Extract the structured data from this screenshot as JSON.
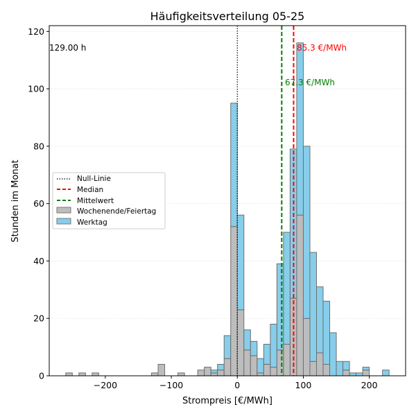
{
  "chart_data": {
    "type": "bar",
    "title": "Häufigkeitsverteilung 05-25",
    "xlabel": "Strompreis [€/MWh]",
    "ylabel": "Stunden im Monat",
    "xlim": [
      -285,
      255
    ],
    "ylim": [
      0,
      122
    ],
    "x_ticks": [
      -200,
      -100,
      0,
      100,
      200
    ],
    "y_ticks": [
      0,
      20,
      40,
      60,
      80,
      100,
      120
    ],
    "grid": "horizontal-dotted",
    "legend_position": "center-left",
    "bin_width": 10,
    "stacked": true,
    "bin_centers": [
      -255,
      -235,
      -215,
      -125,
      -115,
      -85,
      -55,
      -45,
      -35,
      -25,
      -15,
      -5,
      5,
      15,
      25,
      35,
      45,
      55,
      65,
      75,
      85,
      95,
      105,
      115,
      125,
      135,
      145,
      155,
      165,
      175,
      185,
      195,
      225
    ],
    "series": [
      {
        "name": "Wochenende/Feiertag",
        "color": "#bdbdbd",
        "values": [
          1,
          1,
          1,
          1,
          4,
          1,
          2,
          3,
          1,
          2,
          6,
          52,
          23,
          9,
          7,
          1,
          4,
          3,
          9,
          11,
          27,
          56,
          20,
          5,
          8,
          4,
          0,
          0,
          2,
          0,
          0,
          2,
          0
        ]
      },
      {
        "name": "Werktag",
        "color": "#87ceeb",
        "values": [
          0,
          0,
          0,
          0,
          0,
          0,
          0,
          0,
          1,
          2,
          8,
          43,
          33,
          7,
          5,
          5,
          7,
          15,
          30,
          39,
          52,
          60,
          60,
          38,
          23,
          22,
          15,
          5,
          3,
          1,
          1,
          1,
          2
        ]
      }
    ],
    "reference_lines": [
      {
        "name": "Null-Linie",
        "x": 0,
        "color": "#000000",
        "style": "dotted"
      },
      {
        "name": "Median",
        "x": 85.3,
        "color": "#ff0000",
        "style": "dashed",
        "label": "85.3 €/MWh"
      },
      {
        "name": "Mittelwert",
        "x": 67.3,
        "color": "#008000",
        "style": "dashed",
        "label": "67.3 €/MWh"
      }
    ],
    "annotation": "129.00 h"
  }
}
